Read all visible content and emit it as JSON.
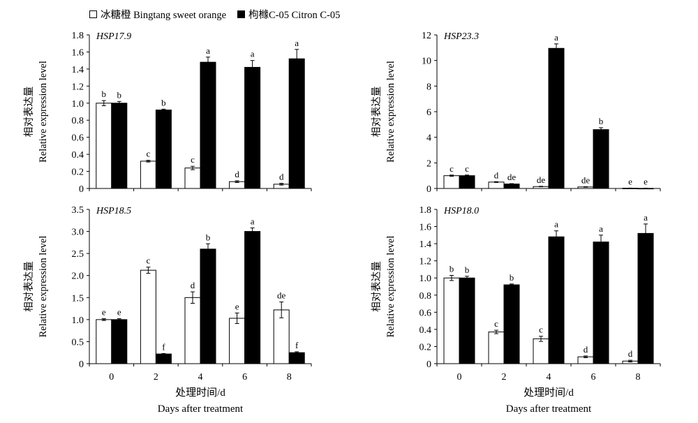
{
  "legend": {
    "series_a": "冰糖橙 Bingtang sweet orange",
    "series_b": "枸橼C-05 Citron C-05"
  },
  "colors": {
    "series_a": "#ffffff",
    "series_b": "#000000",
    "stroke": "#000000"
  },
  "axis_text": {
    "ylabel_cn": "相对表达量",
    "ylabel_en": "Relative expression level",
    "xlabel_cn": "处理时间/d",
    "xlabel_en": "Days after treatment"
  },
  "chart_data": [
    {
      "type": "bar",
      "title": "HSP17.9",
      "categories": [
        "0",
        "2",
        "4",
        "6",
        "8"
      ],
      "ylim": [
        0,
        1.8
      ],
      "yticks": [
        "0",
        "0.2",
        "0.4",
        "0.6",
        "0.8",
        "1.0",
        "1.2",
        "1.4",
        "1.6",
        "1.8"
      ],
      "show_xticklabels": false,
      "series": [
        {
          "name": "冰糖橙 Bingtang sweet orange",
          "values": [
            1.0,
            0.32,
            0.24,
            0.08,
            0.05
          ],
          "errors": [
            0.03,
            0.01,
            0.02,
            0.01,
            0.01
          ],
          "labels": [
            "b",
            "c",
            "c",
            "d",
            "d"
          ]
        },
        {
          "name": "枸橼C-05 Citron C-05",
          "values": [
            1.0,
            0.92,
            1.48,
            1.42,
            1.52
          ],
          "errors": [
            0.02,
            0.01,
            0.06,
            0.08,
            0.11
          ],
          "labels": [
            "b",
            "b",
            "a",
            "a",
            "a"
          ]
        }
      ]
    },
    {
      "type": "bar",
      "title": "HSP23.3",
      "categories": [
        "0",
        "2",
        "4",
        "6",
        "8"
      ],
      "ylim": [
        0,
        12
      ],
      "yticks": [
        "0",
        "2",
        "4",
        "6",
        "8",
        "10",
        "12"
      ],
      "show_xticklabels": false,
      "series": [
        {
          "name": "冰糖橙 Bingtang sweet orange",
          "values": [
            1.0,
            0.5,
            0.15,
            0.12,
            0.02
          ],
          "errors": [
            0.05,
            0.03,
            0.02,
            0.02,
            0.01
          ],
          "labels": [
            "c",
            "d",
            "de",
            "de",
            "e"
          ]
        },
        {
          "name": "枸橼C-05 Citron C-05",
          "values": [
            1.0,
            0.35,
            10.95,
            4.6,
            0.01
          ],
          "errors": [
            0.05,
            0.03,
            0.35,
            0.15,
            0.01
          ],
          "labels": [
            "c",
            "de",
            "a",
            "b",
            "e"
          ]
        }
      ]
    },
    {
      "type": "bar",
      "title": "HSP18.5",
      "categories": [
        "0",
        "2",
        "4",
        "6",
        "8"
      ],
      "ylim": [
        0,
        3.5
      ],
      "yticks": [
        "0",
        "0.5",
        "1.0",
        "1.5",
        "2.0",
        "2.5",
        "3.0",
        "3.5"
      ],
      "show_xticklabels": true,
      "series": [
        {
          "name": "冰糖橙 Bingtang sweet orange",
          "values": [
            1.0,
            2.12,
            1.5,
            1.03,
            1.22
          ],
          "errors": [
            0.02,
            0.07,
            0.13,
            0.12,
            0.18
          ],
          "labels": [
            "e",
            "c",
            "d",
            "e",
            "de"
          ]
        },
        {
          "name": "枸橼C-05 Citron C-05",
          "values": [
            1.0,
            0.22,
            2.6,
            3.0,
            0.25
          ],
          "errors": [
            0.02,
            0.01,
            0.12,
            0.08,
            0.02
          ],
          "labels": [
            "e",
            "f",
            "b",
            "a",
            "f"
          ]
        }
      ]
    },
    {
      "type": "bar",
      "title": "HSP18.0",
      "categories": [
        "0",
        "2",
        "4",
        "6",
        "8"
      ],
      "ylim": [
        0,
        1.8
      ],
      "yticks": [
        "0",
        "0.2",
        "0.4",
        "0.6",
        "0.8",
        "1.0",
        "1.2",
        "1.4",
        "1.6",
        "1.8"
      ],
      "show_xticklabels": true,
      "series": [
        {
          "name": "冰糖橙 Bingtang sweet orange",
          "values": [
            1.0,
            0.37,
            0.29,
            0.08,
            0.03
          ],
          "errors": [
            0.03,
            0.02,
            0.03,
            0.01,
            0.01
          ],
          "labels": [
            "b",
            "c",
            "c",
            "d",
            "d"
          ]
        },
        {
          "name": "枸橼C-05 Citron C-05",
          "values": [
            1.0,
            0.92,
            1.48,
            1.42,
            1.52
          ],
          "errors": [
            0.02,
            0.01,
            0.07,
            0.08,
            0.11
          ],
          "labels": [
            "b",
            "b",
            "a",
            "a",
            "a"
          ]
        }
      ]
    }
  ]
}
